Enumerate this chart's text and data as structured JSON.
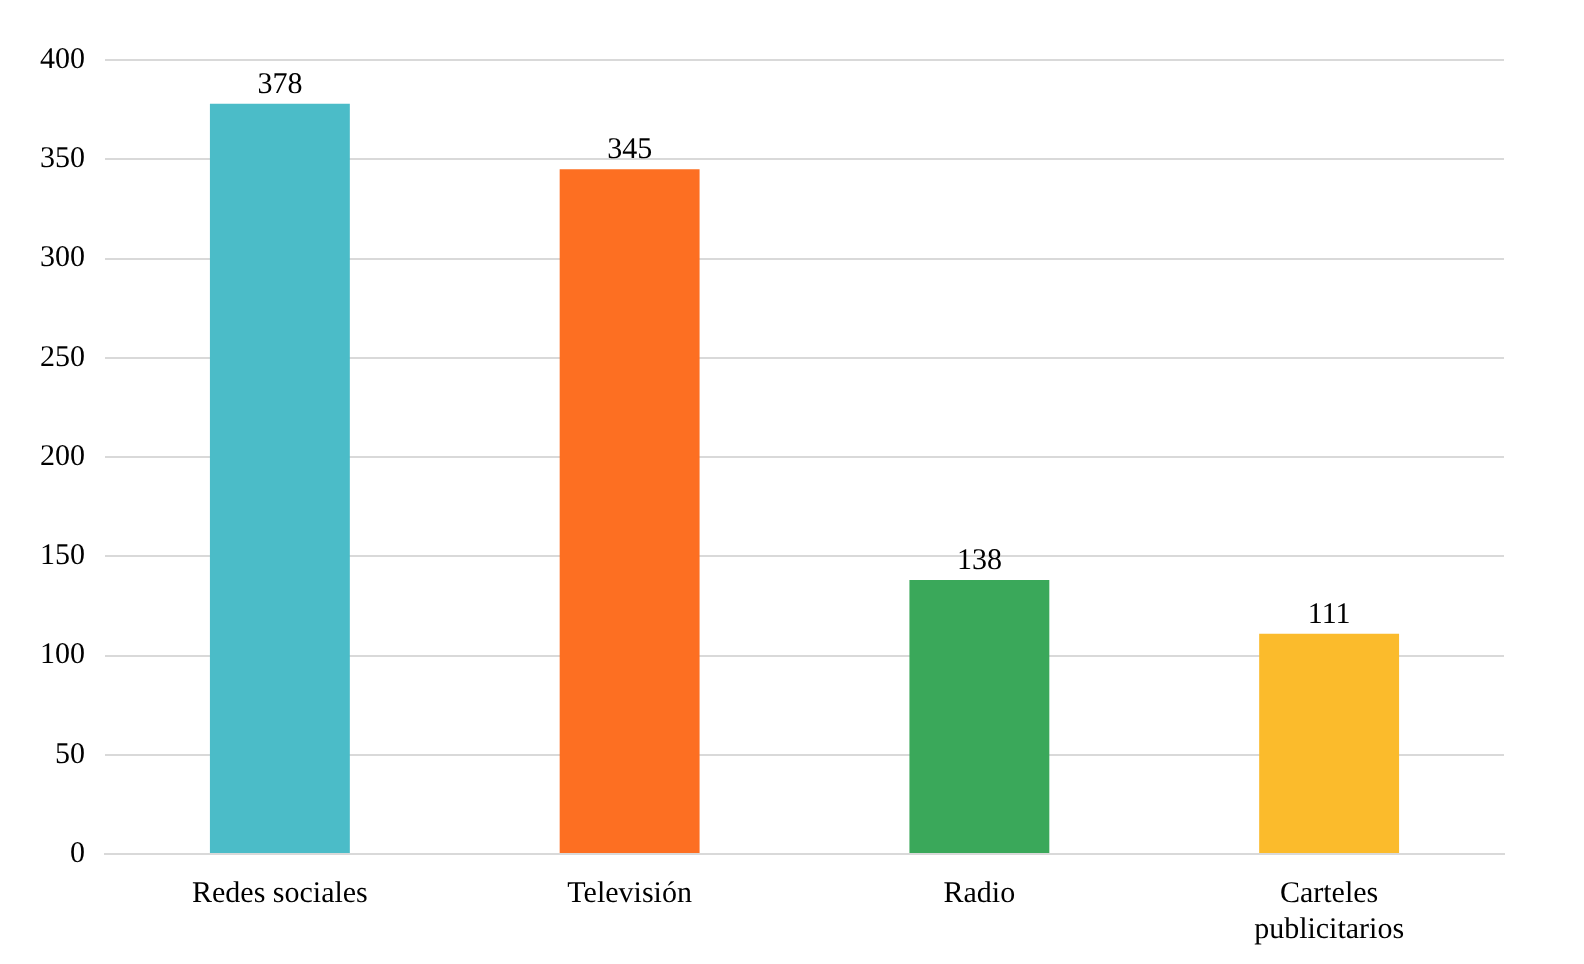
{
  "chart_data": {
    "type": "bar",
    "categories": [
      "Redes sociales",
      "Televisión",
      "Radio",
      [
        "Carteles",
        "publicitarios"
      ]
    ],
    "values": [
      378,
      345,
      138,
      111
    ],
    "colors": [
      "#4bbcc8",
      "#fd6f22",
      "#3aa85a",
      "#fbbb2c"
    ],
    "ylim": [
      0,
      400
    ],
    "yticks": [
      0,
      50,
      100,
      150,
      200,
      250,
      300,
      350,
      400
    ],
    "grid": "y",
    "data_labels": true
  }
}
